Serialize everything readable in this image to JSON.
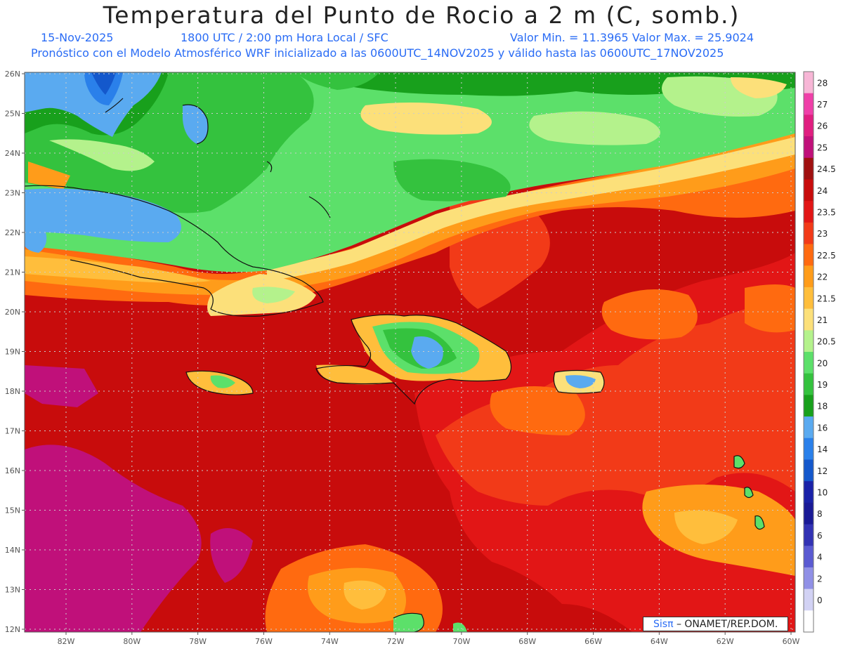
{
  "header": {
    "title": "Temperatura del Punto de Rocio a 2 m (C, somb.)",
    "date": "15-Nov-2025",
    "time": "1800 UTC / 2:00 pm Hora Local / SFC",
    "minmax": "Valor Min. = 11.3965  Valor Max. = 25.9024",
    "model_line": "Pronóstico con el Modelo Atmosférico WRF inicializado a las 0600UTC_14NOV2025 y válido hasta las  0600UTC_17NOV2025"
  },
  "map": {
    "lat_labels": [
      "26N",
      "25N",
      "24N",
      "23N",
      "22N",
      "21N",
      "20N",
      "19N",
      "18N",
      "17N",
      "16N",
      "15N",
      "14N",
      "13N",
      "12N"
    ],
    "lon_labels": [
      "82W",
      "80W",
      "78W",
      "76W",
      "74W",
      "72W",
      "70W",
      "68W",
      "66W",
      "64W",
      "62W",
      "60W"
    ]
  },
  "colorbar": {
    "labels": [
      "28",
      "27",
      "26",
      "25",
      "24.5",
      "24",
      "23.5",
      "23",
      "22.5",
      "22",
      "21.5",
      "21",
      "20.5",
      "20",
      "19",
      "18",
      "16",
      "14",
      "12",
      "10",
      "8",
      "6",
      "4",
      "2",
      "0"
    ],
    "colors": [
      "#f7b6d6",
      "#ef3fa8",
      "#e01e80",
      "#c0107a",
      "#a01010",
      "#c80c0c",
      "#e21616",
      "#f23a18",
      "#ff6a10",
      "#ff9c1a",
      "#ffbe3c",
      "#fce07a",
      "#b4f28c",
      "#5ce06a",
      "#34c23e",
      "#18a01c",
      "#5aaaf0",
      "#2a80ea",
      "#1458cc",
      "#1a22a8",
      "#1a1a96",
      "#3232b4",
      "#5a5ad2",
      "#9090e6",
      "#d2d2f4",
      "#ffffff"
    ]
  },
  "credit": {
    "brand": "Sisπ",
    "text": "– ONAMET/REP.DOM."
  }
}
